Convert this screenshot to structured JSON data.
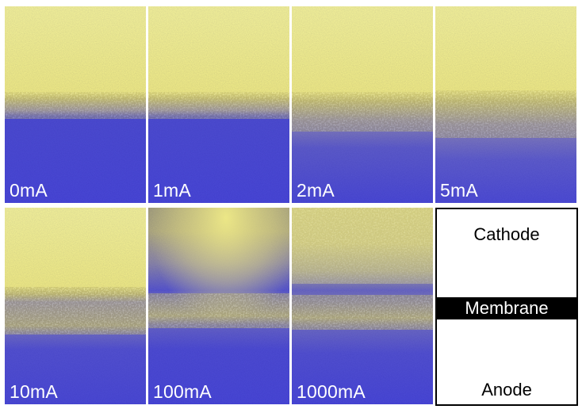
{
  "figure": {
    "panels": [
      {
        "label": "0mA"
      },
      {
        "label": "1mA"
      },
      {
        "label": "2mA"
      },
      {
        "label": "5mA"
      },
      {
        "label": "10mA"
      },
      {
        "label": "100mA"
      },
      {
        "label": "1000mA"
      }
    ],
    "legend": {
      "cathode": "Cathode",
      "membrane": "Membrane",
      "anode": "Anode"
    }
  },
  "colors": {
    "yellow": "#f4f08a",
    "blue": "#4a48d6",
    "background": "#ffffff"
  }
}
